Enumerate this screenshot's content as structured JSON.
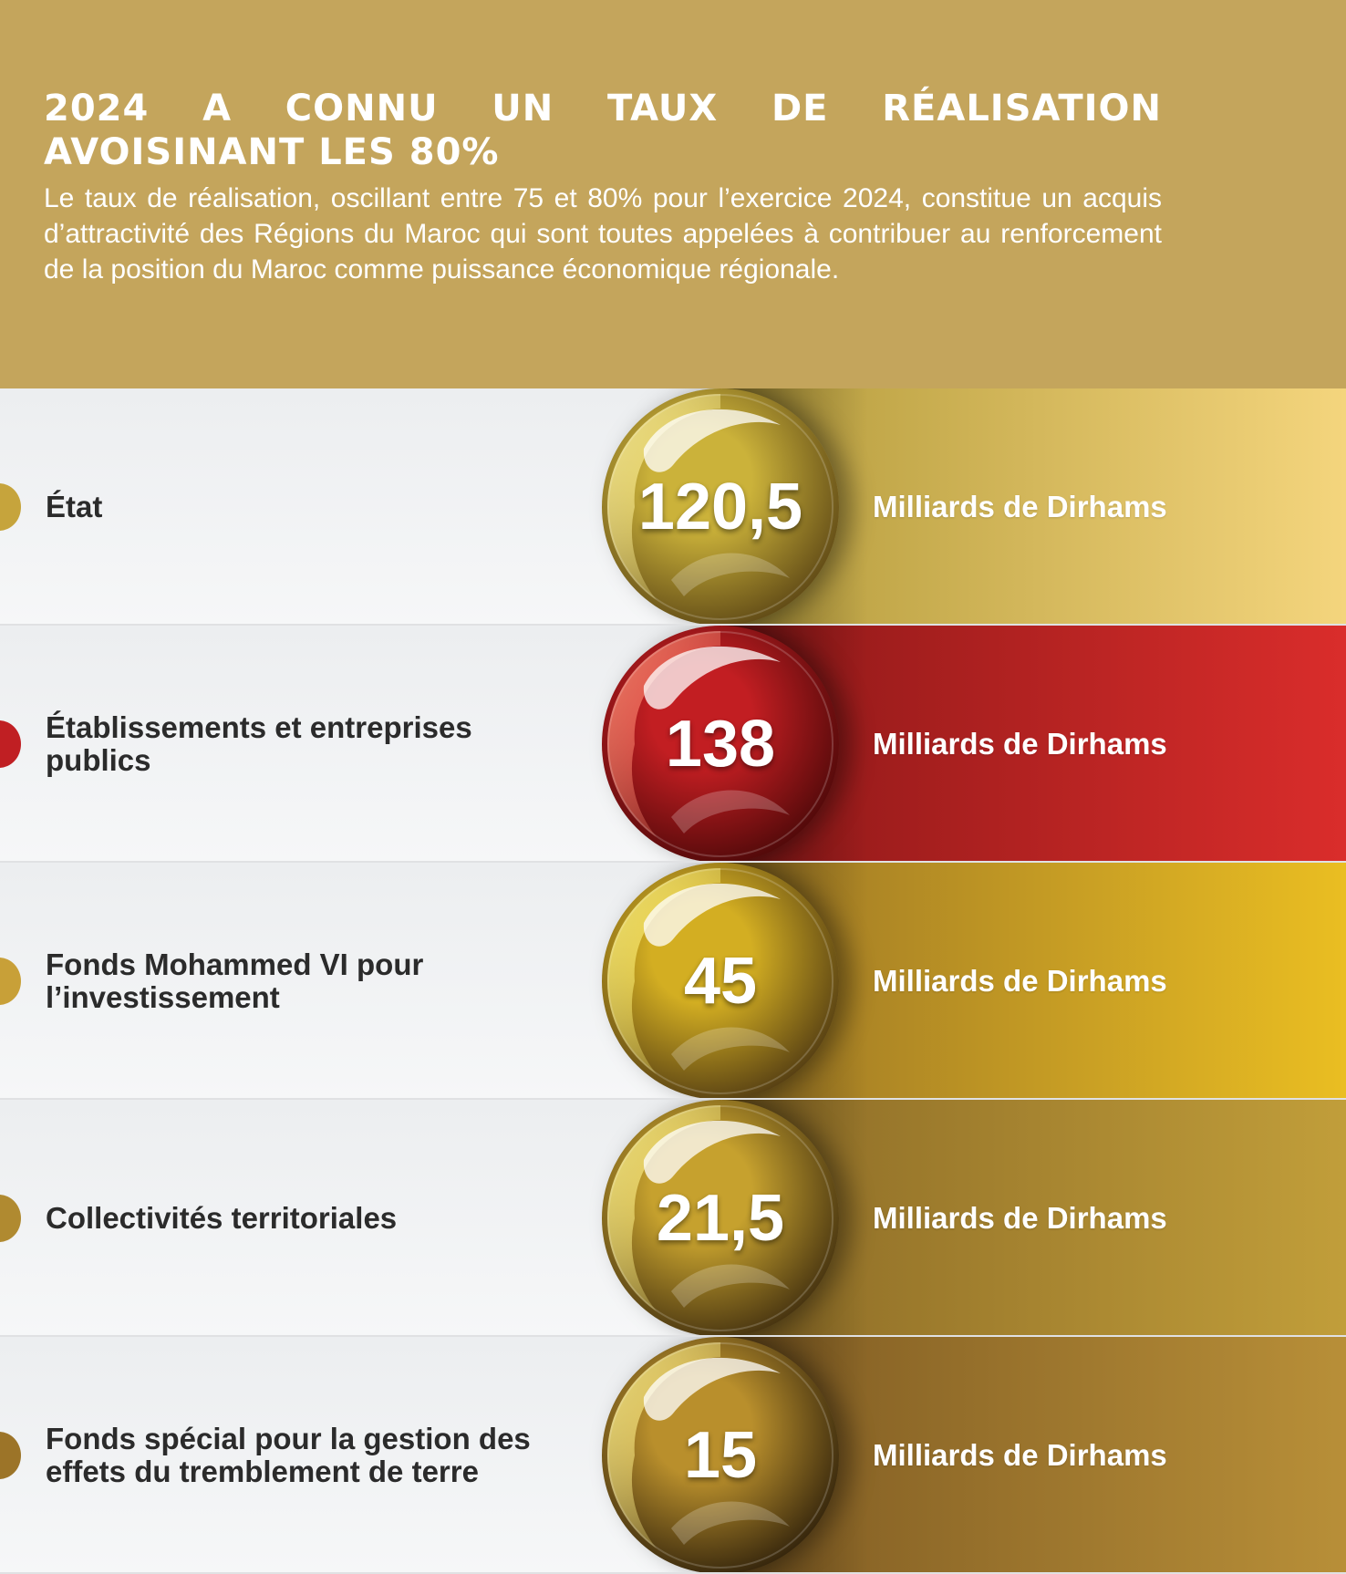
{
  "header": {
    "title": "2024 A CONNU UN TAUX DE RÉALISATION AVOISINANT LES 80%",
    "intro": "Le taux de réalisation, oscillant entre 75 et 80% pour l’exercice 2024, constitue un acquis d’attractivité des Régions du Maroc qui sont toutes appelées à contribuer au renforcement de la position du Maroc comme puissance économique régionale."
  },
  "chart_data": {
    "type": "table",
    "unit": "Milliards de Dirhams",
    "categories": [
      "État",
      "Établissements et entreprises publics",
      "Fonds Mohammed VI pour l’investissement",
      "Collectivités territoriales",
      "Fonds spécial pour la gestion des effets du tremblement de terre"
    ],
    "values": [
      120.5,
      138,
      45,
      21.5,
      15
    ],
    "value_labels": [
      "120,5",
      "138",
      "45",
      "21,5",
      "15"
    ]
  },
  "rows": [
    {
      "label": "État",
      "value": "120,5",
      "unit": "Milliards de Dirhams",
      "band_from": "#b39a3a",
      "band_to": "#f4d57d",
      "sphere_light": "#fff29a",
      "sphere_mid": "#cbb23a",
      "sphere_dark": "#5a4414",
      "bullet": "#c6a43c"
    },
    {
      "label": "Établissements et entreprises publics",
      "value": "138",
      "unit": "Milliards de Dirhams",
      "band_from": "#8c1818",
      "band_to": "#da2d2b",
      "sphere_light": "#ff8a72",
      "sphere_mid": "#c21e22",
      "sphere_dark": "#4a0808",
      "bullet": "#c01f23"
    },
    {
      "label": "Fonds Mohammed VI pour l’investissement",
      "value": "45",
      "unit": "Milliards de Dirhams",
      "band_from": "#9b7526",
      "band_to": "#eabe22",
      "sphere_light": "#fff27a",
      "sphere_mid": "#d3ae22",
      "sphere_dark": "#4e3812",
      "bullet": "#c8a038"
    },
    {
      "label": "Collectivités territoriales",
      "value": "21,5",
      "unit": "Milliards de Dirhams",
      "band_from": "#8b6a26",
      "band_to": "#c19e3a",
      "sphere_light": "#fff28a",
      "sphere_mid": "#c6a12e",
      "sphere_dark": "#3e2c0e",
      "bullet": "#b08a30"
    },
    {
      "label": "Fonds spécial pour la gestion des effets du tremblement de terre",
      "value": "15",
      "unit": "Milliards de Dirhams",
      "band_from": "#7e5a22",
      "band_to": "#b88f38",
      "sphere_light": "#fff08a",
      "sphere_mid": "#b98f2c",
      "sphere_dark": "#2c1e0a",
      "bullet": "#9c7428"
    }
  ]
}
